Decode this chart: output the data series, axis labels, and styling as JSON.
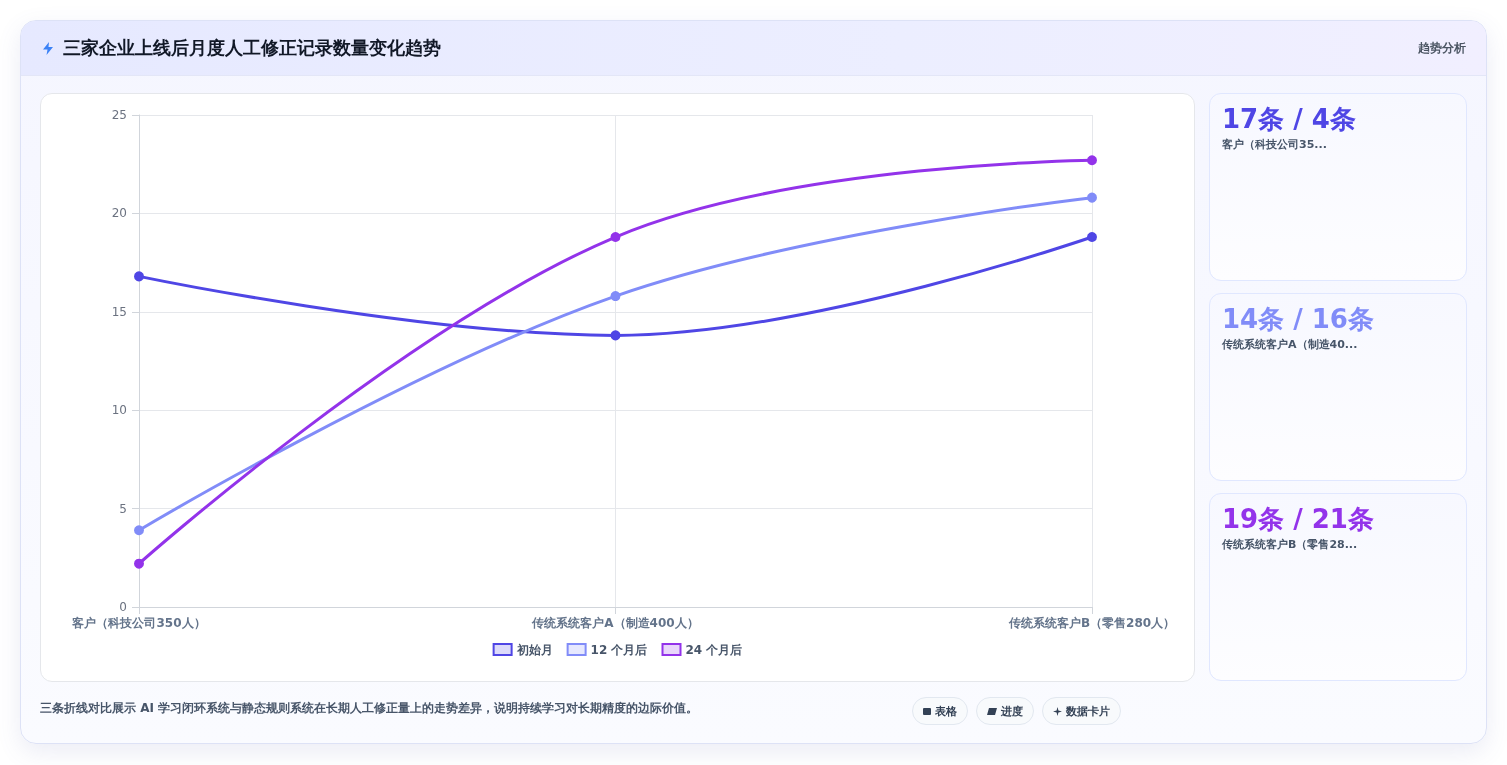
{
  "chart_data": [
    {
      "type": "line",
      "title": "三家企业上线后月度人工修正记录数量变化趋势",
      "categories": [
        "客户（科技公司350人）",
        "传统系统客户A（制造400人）",
        "传统系统客户B（零售280人）"
      ],
      "series": [
        {
          "name": "初始月",
          "color": "#4f46e5",
          "values": [
            16.8,
            13.8,
            18.8
          ]
        },
        {
          "name": "12 个月后",
          "color": "#818cf8",
          "values": [
            3.9,
            15.8,
            20.8
          ]
        },
        {
          "name": "24 个月后",
          "color": "#9333ea",
          "values": [
            2.2,
            18.8,
            22.7
          ]
        }
      ],
      "ylim": [
        0,
        25
      ],
      "yticks": [
        0,
        5,
        10,
        15,
        20,
        25
      ],
      "grid": true,
      "legend": "bottom",
      "marker": "circle",
      "annotations": [
        "趋势分析",
        "三条折线对比展示 AI 学习闭环系统与静态规则系统在长期人工修正量上的走势差异，说明持续学习对长期精度的边际价值。"
      ]
    },
    {
      "type": "other",
      "title": "17条 / 4条",
      "subtitle": "客户（科技公司35...",
      "color": "#4f46e5"
    },
    {
      "type": "other",
      "title": "14条 / 16条",
      "subtitle": "传统系统客户A（制造40...",
      "color": "#818cf8"
    },
    {
      "type": "other",
      "title": "19条 / 21条",
      "subtitle": "传统系统客户B（零售28...",
      "color": "#9333ea"
    },
    {
      "type": "other",
      "annotations": [
        "表格",
        "进度",
        "数据卡片"
      ]
    }
  ]
}
